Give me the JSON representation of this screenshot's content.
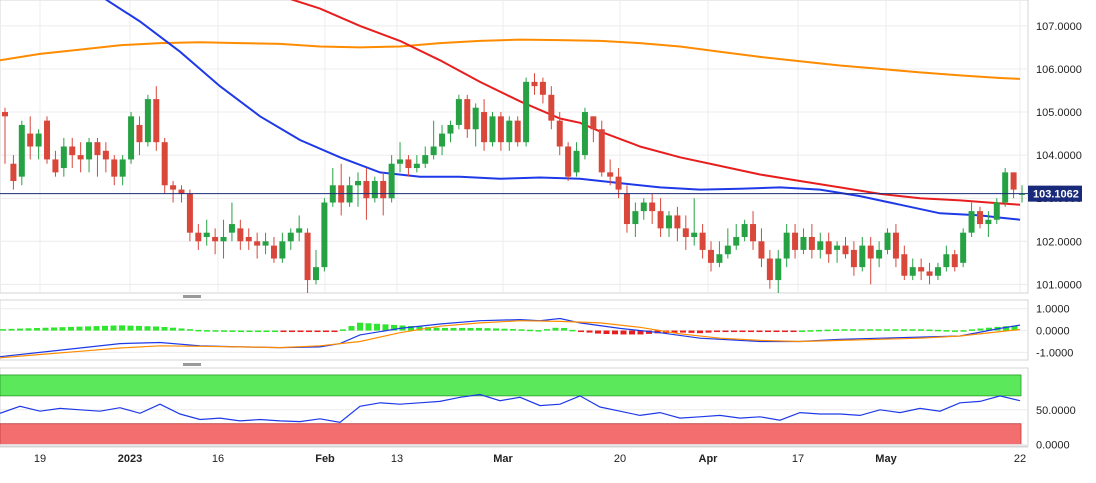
{
  "chart_data": [
    {
      "type": "candlestick",
      "title": "",
      "xlabel": "",
      "ylabel": "",
      "ylim": [
        100.8,
        107.6
      ],
      "yticks": [
        101.0,
        102.0,
        103.0,
        104.0,
        105.0,
        106.0,
        107.0
      ],
      "ytick_labels": [
        "101.0000",
        "102.0000",
        "103.0000",
        "104.0000",
        "105.0000",
        "106.0000",
        "107.0000"
      ],
      "xtick_labels": [
        "19",
        "2023",
        "16",
        "Feb",
        "13",
        "Mar",
        "20",
        "Apr",
        "17",
        "May",
        "22"
      ],
      "current_price": 103.1062,
      "current_price_label": "103.1062",
      "up_color": "#26a245",
      "down_color": "#d9463a",
      "series": [
        {
          "color": "#ff8c00",
          "x": [
            0,
            40,
            80,
            120,
            160,
            200,
            240,
            280,
            320,
            360,
            400,
            440,
            480,
            520,
            560,
            600,
            640,
            680,
            720,
            760,
            800,
            840,
            880,
            920,
            960,
            1000,
            1020
          ],
          "values": [
            106.2,
            106.35,
            106.45,
            106.55,
            106.6,
            106.62,
            106.6,
            106.58,
            106.52,
            106.5,
            106.52,
            106.6,
            106.65,
            106.68,
            106.67,
            106.65,
            106.6,
            106.52,
            106.4,
            106.28,
            106.18,
            106.08,
            106.0,
            105.92,
            105.85,
            105.79,
            105.77
          ]
        },
        {
          "color": "#e81e1e",
          "x": [
            280,
            320,
            360,
            400,
            440,
            480,
            520,
            560,
            580,
            600,
            640,
            680,
            720,
            760,
            800,
            840,
            880,
            920,
            960,
            1000,
            1020
          ],
          "values": [
            107.7,
            107.4,
            107.0,
            106.65,
            106.2,
            105.7,
            105.25,
            104.85,
            104.75,
            104.55,
            104.2,
            103.95,
            103.75,
            103.55,
            103.4,
            103.25,
            103.1,
            103.0,
            102.95,
            102.88,
            102.85
          ]
        },
        {
          "color": "#1e3ae8",
          "x": [
            100,
            140,
            180,
            220,
            260,
            300,
            340,
            380,
            420,
            460,
            500,
            540,
            580,
            620,
            660,
            700,
            740,
            780,
            820,
            860,
            900,
            940,
            980,
            1000,
            1020
          ],
          "values": [
            107.7,
            107.1,
            106.4,
            105.6,
            104.9,
            104.35,
            103.95,
            103.6,
            103.5,
            103.5,
            103.45,
            103.48,
            103.45,
            103.35,
            103.25,
            103.2,
            103.22,
            103.25,
            103.2,
            103.05,
            102.85,
            102.65,
            102.6,
            102.55,
            102.5
          ]
        }
      ],
      "candles": [
        [
          105.0,
          104.9,
          105.1,
          103.8
        ],
        [
          103.8,
          103.4,
          104.0,
          103.2
        ],
        [
          103.5,
          104.7,
          104.8,
          103.3
        ],
        [
          104.5,
          104.2,
          104.9,
          103.9
        ],
        [
          104.2,
          104.5,
          104.6,
          103.9
        ],
        [
          104.8,
          103.9,
          104.9,
          103.8
        ],
        [
          103.9,
          103.6,
          104.1,
          103.5
        ],
        [
          103.7,
          104.2,
          104.4,
          103.5
        ],
        [
          104.2,
          104.0,
          104.4,
          103.7
        ],
        [
          104.0,
          103.9,
          104.3,
          103.6
        ],
        [
          103.9,
          104.3,
          104.4,
          103.6
        ],
        [
          104.3,
          104.0,
          104.4,
          103.5
        ],
        [
          104.1,
          103.9,
          104.3,
          103.6
        ],
        [
          103.9,
          103.5,
          104.0,
          103.3
        ],
        [
          103.5,
          103.9,
          104.0,
          103.3
        ],
        [
          103.9,
          104.9,
          105.0,
          103.8
        ],
        [
          104.7,
          104.3,
          104.9,
          104.0
        ],
        [
          104.3,
          105.3,
          105.4,
          104.2
        ],
        [
          105.3,
          104.3,
          105.6,
          104.1
        ],
        [
          104.3,
          103.3,
          104.4,
          103.1
        ],
        [
          103.3,
          103.2,
          103.4,
          102.9
        ],
        [
          103.2,
          103.1,
          103.3,
          102.9
        ],
        [
          103.1,
          102.2,
          103.2,
          102.0
        ],
        [
          102.2,
          102.0,
          102.4,
          101.8
        ],
        [
          102.1,
          102.2,
          102.5,
          101.9
        ],
        [
          102.1,
          102.0,
          102.3,
          101.7
        ],
        [
          102.0,
          102.1,
          102.5,
          101.6
        ],
        [
          102.2,
          102.4,
          102.9,
          102.0
        ],
        [
          102.3,
          102.0,
          102.5,
          101.8
        ],
        [
          102.1,
          102.0,
          102.3,
          101.8
        ],
        [
          102.0,
          101.9,
          102.2,
          101.6
        ],
        [
          101.9,
          102.0,
          102.2,
          101.7
        ],
        [
          101.9,
          101.6,
          102.1,
          101.5
        ],
        [
          101.6,
          102.0,
          102.2,
          101.5
        ],
        [
          102.0,
          102.2,
          102.3,
          101.8
        ],
        [
          102.2,
          102.3,
          102.6,
          102.0
        ],
        [
          102.2,
          101.1,
          102.3,
          100.8
        ],
        [
          101.1,
          101.4,
          101.8,
          101.0
        ],
        [
          101.4,
          102.9,
          103.0,
          101.3
        ],
        [
          102.9,
          103.3,
          103.7,
          102.8
        ],
        [
          103.3,
          102.9,
          103.8,
          102.6
        ],
        [
          102.9,
          103.3,
          103.5,
          102.8
        ],
        [
          103.3,
          103.4,
          103.6,
          102.8
        ],
        [
          103.4,
          103.0,
          103.7,
          102.5
        ],
        [
          103.0,
          103.4,
          103.5,
          102.9
        ],
        [
          103.4,
          103.0,
          103.6,
          102.6
        ],
        [
          103.0,
          103.8,
          104.0,
          102.9
        ],
        [
          103.8,
          103.9,
          104.3,
          103.6
        ],
        [
          103.9,
          103.7,
          104.0,
          103.5
        ],
        [
          103.7,
          103.8,
          104.0,
          103.6
        ],
        [
          103.8,
          104.0,
          104.2,
          103.7
        ],
        [
          104.0,
          104.2,
          104.8,
          103.9
        ],
        [
          104.2,
          104.5,
          104.7,
          104.0
        ],
        [
          104.5,
          104.7,
          104.8,
          104.3
        ],
        [
          104.7,
          105.3,
          105.4,
          104.6
        ],
        [
          105.3,
          104.6,
          105.4,
          104.4
        ],
        [
          104.6,
          105.1,
          105.2,
          104.2
        ],
        [
          105.0,
          104.3,
          105.3,
          104.1
        ],
        [
          104.3,
          104.9,
          105.0,
          104.2
        ],
        [
          104.9,
          104.3,
          105.0,
          104.1
        ],
        [
          104.3,
          104.8,
          104.9,
          104.1
        ],
        [
          104.8,
          104.3,
          104.9,
          104.2
        ],
        [
          104.3,
          105.7,
          105.8,
          104.2
        ],
        [
          105.7,
          105.6,
          105.9,
          105.4
        ],
        [
          105.7,
          105.4,
          105.8,
          105.2
        ],
        [
          105.4,
          104.8,
          105.6,
          104.6
        ],
        [
          104.8,
          104.2,
          105.0,
          104.0
        ],
        [
          104.2,
          103.5,
          104.3,
          103.4
        ],
        [
          103.6,
          104.1,
          104.3,
          103.5
        ],
        [
          104.0,
          105.0,
          105.1,
          103.9
        ],
        [
          104.9,
          104.6,
          104.9,
          104.3
        ],
        [
          104.6,
          103.6,
          104.8,
          103.5
        ],
        [
          103.6,
          103.5,
          103.9,
          103.3
        ],
        [
          103.5,
          103.2,
          103.7,
          103.0
        ],
        [
          103.1,
          102.4,
          103.3,
          102.2
        ],
        [
          102.4,
          102.7,
          102.9,
          102.1
        ],
        [
          102.7,
          102.9,
          103.0,
          102.5
        ],
        [
          102.9,
          102.7,
          103.1,
          102.4
        ],
        [
          102.7,
          102.3,
          103.0,
          102.1
        ],
        [
          102.3,
          102.6,
          102.7,
          102.1
        ],
        [
          102.6,
          102.3,
          102.8,
          102.0
        ],
        [
          102.3,
          102.1,
          102.6,
          101.8
        ],
        [
          102.1,
          102.2,
          103.0,
          101.9
        ],
        [
          102.2,
          101.8,
          102.4,
          101.6
        ],
        [
          101.8,
          101.5,
          102.0,
          101.3
        ],
        [
          101.5,
          101.7,
          102.0,
          101.4
        ],
        [
          101.7,
          101.9,
          102.3,
          101.6
        ],
        [
          101.9,
          102.1,
          102.4,
          101.8
        ],
        [
          102.1,
          102.4,
          102.5,
          102.0
        ],
        [
          102.4,
          102.0,
          102.7,
          101.8
        ],
        [
          102.0,
          101.6,
          102.3,
          101.4
        ],
        [
          101.6,
          101.1,
          101.8,
          100.9
        ],
        [
          101.1,
          101.6,
          101.8,
          100.8
        ],
        [
          101.6,
          102.2,
          102.4,
          101.4
        ],
        [
          102.2,
          101.8,
          102.4,
          101.6
        ],
        [
          101.8,
          102.1,
          102.3,
          101.7
        ],
        [
          102.1,
          101.8,
          102.4,
          101.6
        ],
        [
          101.8,
          102.0,
          102.2,
          101.6
        ],
        [
          102.0,
          101.7,
          102.2,
          101.5
        ],
        [
          101.8,
          101.9,
          102.0,
          101.5
        ],
        [
          101.9,
          101.7,
          102.1,
          101.6
        ],
        [
          101.8,
          101.4,
          102.0,
          101.2
        ],
        [
          101.4,
          101.9,
          102.1,
          101.3
        ],
        [
          101.9,
          101.6,
          102.1,
          101.0
        ],
        [
          101.6,
          101.8,
          102.0,
          101.4
        ],
        [
          101.8,
          102.2,
          102.3,
          101.7
        ],
        [
          102.2,
          101.6,
          102.4,
          101.4
        ],
        [
          101.7,
          101.2,
          101.9,
          101.1
        ],
        [
          101.2,
          101.4,
          101.6,
          101.1
        ],
        [
          101.4,
          101.3,
          101.6,
          101.1
        ],
        [
          101.3,
          101.2,
          101.5,
          101.0
        ],
        [
          101.2,
          101.4,
          101.5,
          101.1
        ],
        [
          101.4,
          101.7,
          101.9,
          101.3
        ],
        [
          101.7,
          101.4,
          101.8,
          101.3
        ],
        [
          101.5,
          102.2,
          102.3,
          101.4
        ],
        [
          102.2,
          102.7,
          102.9,
          102.1
        ],
        [
          102.7,
          102.4,
          102.8,
          102.3
        ],
        [
          102.4,
          102.5,
          102.7,
          102.1
        ],
        [
          102.5,
          102.9,
          103.0,
          102.4
        ],
        [
          102.9,
          103.6,
          103.7,
          102.8
        ],
        [
          103.6,
          103.2,
          103.6,
          103.0
        ],
        [
          103.1,
          103.1,
          103.3,
          102.9
        ]
      ],
      "grid": true
    },
    {
      "type": "line",
      "title": "",
      "yticks": [
        -1.0,
        0.0,
        1.0
      ],
      "ytick_labels": [
        "-1.0000",
        "0.0000",
        "1.0000"
      ],
      "ylim": [
        -1.35,
        1.4
      ],
      "series": [
        {
          "color": "#1e3ae8",
          "x": [
            0,
            40,
            80,
            120,
            160,
            200,
            240,
            280,
            320,
            340,
            360,
            400,
            440,
            480,
            520,
            540,
            560,
            580,
            620,
            660,
            700,
            760,
            800,
            840,
            880,
            920,
            960,
            1000,
            1020
          ],
          "values": [
            -1.2,
            -1.0,
            -0.8,
            -0.6,
            -0.55,
            -0.7,
            -0.75,
            -0.78,
            -0.75,
            -0.6,
            -0.2,
            0.1,
            0.3,
            0.45,
            0.5,
            0.45,
            0.55,
            0.35,
            0.1,
            -0.1,
            -0.35,
            -0.5,
            -0.5,
            -0.4,
            -0.35,
            -0.3,
            -0.25,
            0.1,
            0.25
          ]
        },
        {
          "color": "#ff8c00",
          "x": [
            0,
            40,
            80,
            120,
            160,
            200,
            240,
            280,
            320,
            360,
            400,
            440,
            480,
            520,
            560,
            600,
            640,
            680,
            720,
            760,
            800,
            840,
            880,
            920,
            960,
            1000,
            1020
          ],
          "values": [
            -1.25,
            -1.1,
            -0.95,
            -0.8,
            -0.7,
            -0.72,
            -0.75,
            -0.78,
            -0.7,
            -0.5,
            -0.1,
            0.2,
            0.35,
            0.45,
            0.42,
            0.35,
            0.15,
            -0.15,
            -0.35,
            -0.45,
            -0.5,
            -0.45,
            -0.4,
            -0.35,
            -0.25,
            -0.05,
            0.05
          ]
        }
      ],
      "histogram": {
        "up_color": "#2fe62f",
        "down_color": "#e81e1e"
      },
      "grid": true
    },
    {
      "type": "line",
      "title": "",
      "yticks": [
        0.0,
        50.0
      ],
      "ytick_labels": [
        "0.0000",
        "50.0000"
      ],
      "ylim": [
        -2,
        110
      ],
      "overbought_band": [
        70,
        100
      ],
      "oversold_band": [
        0,
        30
      ],
      "band_colors": {
        "upper": "#5be85b",
        "lower": "#f36f6f"
      },
      "series": [
        {
          "color": "#1e3ae8",
          "x": [
            0,
            20,
            40,
            60,
            80,
            100,
            120,
            140,
            160,
            180,
            200,
            220,
            240,
            260,
            280,
            300,
            320,
            340,
            360,
            380,
            400,
            420,
            440,
            460,
            480,
            500,
            520,
            540,
            560,
            580,
            600,
            620,
            640,
            660,
            680,
            700,
            720,
            740,
            760,
            780,
            800,
            820,
            840,
            860,
            880,
            900,
            920,
            940,
            960,
            980,
            1000,
            1020
          ],
          "values": [
            45,
            55,
            48,
            52,
            50,
            48,
            53,
            45,
            58,
            44,
            36,
            38,
            34,
            36,
            34,
            33,
            37,
            32,
            55,
            60,
            58,
            60,
            62,
            68,
            72,
            63,
            68,
            56,
            58,
            70,
            54,
            48,
            42,
            46,
            38,
            40,
            42,
            38,
            40,
            35,
            46,
            44,
            44,
            42,
            50,
            46,
            52,
            48,
            60,
            62,
            70,
            63
          ]
        }
      ],
      "grid": true
    }
  ]
}
